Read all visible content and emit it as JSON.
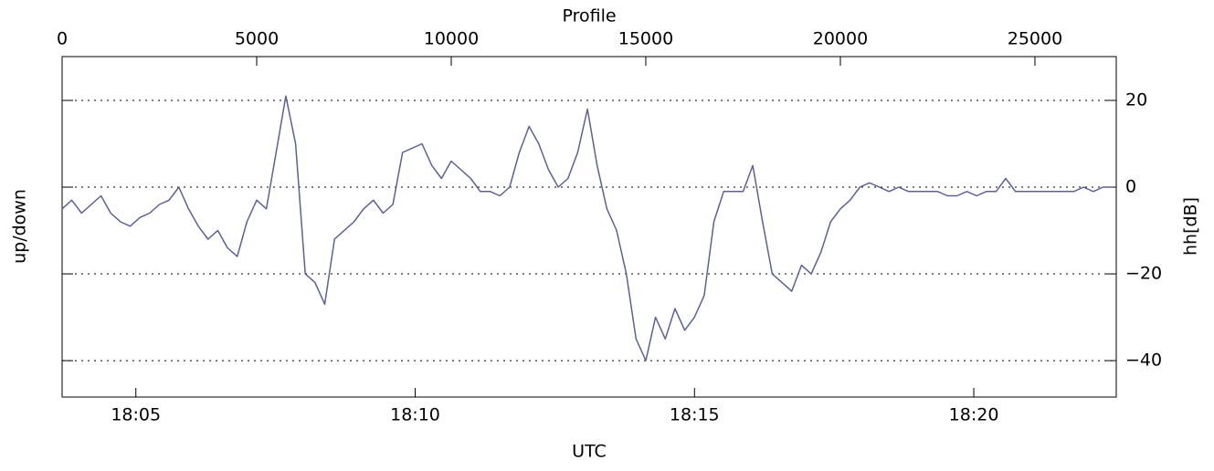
{
  "chart_data": {
    "type": "line",
    "xlabel": "Profile",
    "x2label": "UTC",
    "ylabel": "up/down",
    "y2label": "hh[dB]",
    "xlim": [
      0,
      27090
    ],
    "xticks": [
      0,
      5000,
      10000,
      15000,
      20000,
      25000
    ],
    "x2lim": [
      1083.68,
      1102.55
    ],
    "x2ticks": [
      {
        "value": 1085,
        "label": "18:05"
      },
      {
        "value": 1090,
        "label": "18:10"
      },
      {
        "value": 1095,
        "label": "18:15"
      },
      {
        "value": 1100,
        "label": "18:20"
      }
    ],
    "y2lim": [
      -48.4,
      30.1
    ],
    "y2ticks": [
      {
        "value": -40,
        "label": "−40"
      },
      {
        "value": -20,
        "label": "−20"
      },
      0,
      20
    ],
    "grid": true,
    "x": [
      0,
      250,
      500,
      750,
      1000,
      1250,
      1500,
      1750,
      2000,
      2250,
      2500,
      2750,
      3000,
      3250,
      3500,
      3750,
      4000,
      4250,
      4500,
      4750,
      5000,
      5250,
      5500,
      5750,
      6000,
      6250,
      6500,
      6750,
      7000,
      7250,
      7500,
      7750,
      8000,
      8250,
      8500,
      8750,
      9000,
      9250,
      9500,
      9750,
      10000,
      10250,
      10500,
      10750,
      11000,
      11250,
      11500,
      11750,
      12000,
      12250,
      12500,
      12750,
      13000,
      13250,
      13500,
      13750,
      14000,
      14250,
      14500,
      14750,
      15000,
      15250,
      15500,
      15750,
      16000,
      16250,
      16500,
      16750,
      17000,
      17250,
      17500,
      17750,
      18000,
      18250,
      18500,
      18750,
      19000,
      19250,
      19500,
      19750,
      20000,
      20250,
      20500,
      20750,
      21000,
      21250,
      21500,
      21750,
      22000,
      22250,
      22500,
      22750,
      23000,
      23250,
      23500,
      23750,
      24000,
      24250,
      24500,
      24750,
      25000,
      25250,
      25500,
      25750,
      26000,
      26250,
      26500,
      26750,
      27000
    ],
    "series": [
      {
        "color": "#5c6099",
        "axis": "y2",
        "values": [
          -5,
          -3,
          -6,
          -4,
          -2,
          -6,
          -8,
          -9,
          -7,
          -6,
          -4,
          -3,
          0,
          -5,
          -9,
          -12,
          -10,
          -14,
          -16,
          -8,
          -3,
          -5,
          8,
          21,
          10,
          -20,
          -22,
          -27,
          -12,
          -10,
          -8,
          -5,
          -3,
          -6,
          -4,
          8,
          9,
          10,
          5,
          2,
          6,
          4,
          2,
          -1,
          -1,
          -2,
          0,
          8,
          14,
          10,
          4,
          0,
          2,
          8,
          18,
          5,
          -5,
          -10,
          -20,
          -35,
          -40,
          -30,
          -35,
          -28,
          -33,
          -30,
          -25,
          -8,
          -1,
          -1,
          -1,
          5,
          -8,
          -20,
          -22,
          -24,
          -18,
          -20,
          -15,
          -8,
          -5,
          -3,
          0,
          1,
          0,
          -1,
          0,
          -1,
          -1,
          -1,
          -1,
          -2,
          -2,
          -1,
          -2,
          -1,
          -1,
          2,
          -1,
          -1,
          -1,
          -1,
          -1,
          -1,
          -1,
          0,
          -1,
          0,
          0
        ]
      }
    ]
  }
}
